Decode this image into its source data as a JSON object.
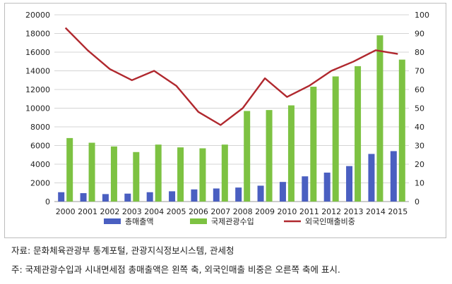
{
  "chart_data": {
    "type": "bar",
    "categories": [
      "2000",
      "2001",
      "2002",
      "2003",
      "2004",
      "2005",
      "2006",
      "2007",
      "2008",
      "2009",
      "2010",
      "2011",
      "2012",
      "2013",
      "2014",
      "2015"
    ],
    "series": [
      {
        "name": "총매출액",
        "type": "bar",
        "axis": "left",
        "color": "#4a5fc1",
        "values": [
          1000,
          900,
          800,
          850,
          1000,
          1100,
          1300,
          1400,
          1500,
          1700,
          2100,
          2700,
          3100,
          3800,
          5100,
          5400
        ]
      },
      {
        "name": "국제관광수입",
        "type": "bar",
        "axis": "left",
        "color": "#7dc242",
        "values": [
          6800,
          6300,
          5900,
          5300,
          6100,
          5800,
          5700,
          6100,
          9700,
          9800,
          10300,
          12300,
          13400,
          14500,
          17800,
          15200
        ]
      },
      {
        "name": "외국인매출비중",
        "type": "line",
        "axis": "right",
        "color": "#b0282e",
        "values": [
          93,
          81,
          71,
          65,
          70,
          62,
          48,
          41,
          50,
          66,
          56,
          62,
          70,
          75,
          81,
          79
        ]
      }
    ],
    "y_left": {
      "min": 0,
      "max": 20000,
      "step": 2000,
      "ticks": [
        "0",
        "2000",
        "4000",
        "6000",
        "8000",
        "10000",
        "12000",
        "14000",
        "16000",
        "18000",
        "20000"
      ]
    },
    "y_right": {
      "min": 0,
      "max": 100,
      "step": 10,
      "ticks": [
        "0",
        "10",
        "20",
        "30",
        "40",
        "50",
        "60",
        "70",
        "80",
        "90",
        "100"
      ]
    },
    "grid": true,
    "legend_position": "bottom"
  },
  "notes": {
    "source": "자료: 문화체육관광부 통계포털, 관광지식정보시스템, 관세청",
    "footnote": "주: 국제관광수입과 시내면세점 총매출액은 왼쪽 축, 외국인매출 비중은 오른쪽 축에 표시."
  }
}
